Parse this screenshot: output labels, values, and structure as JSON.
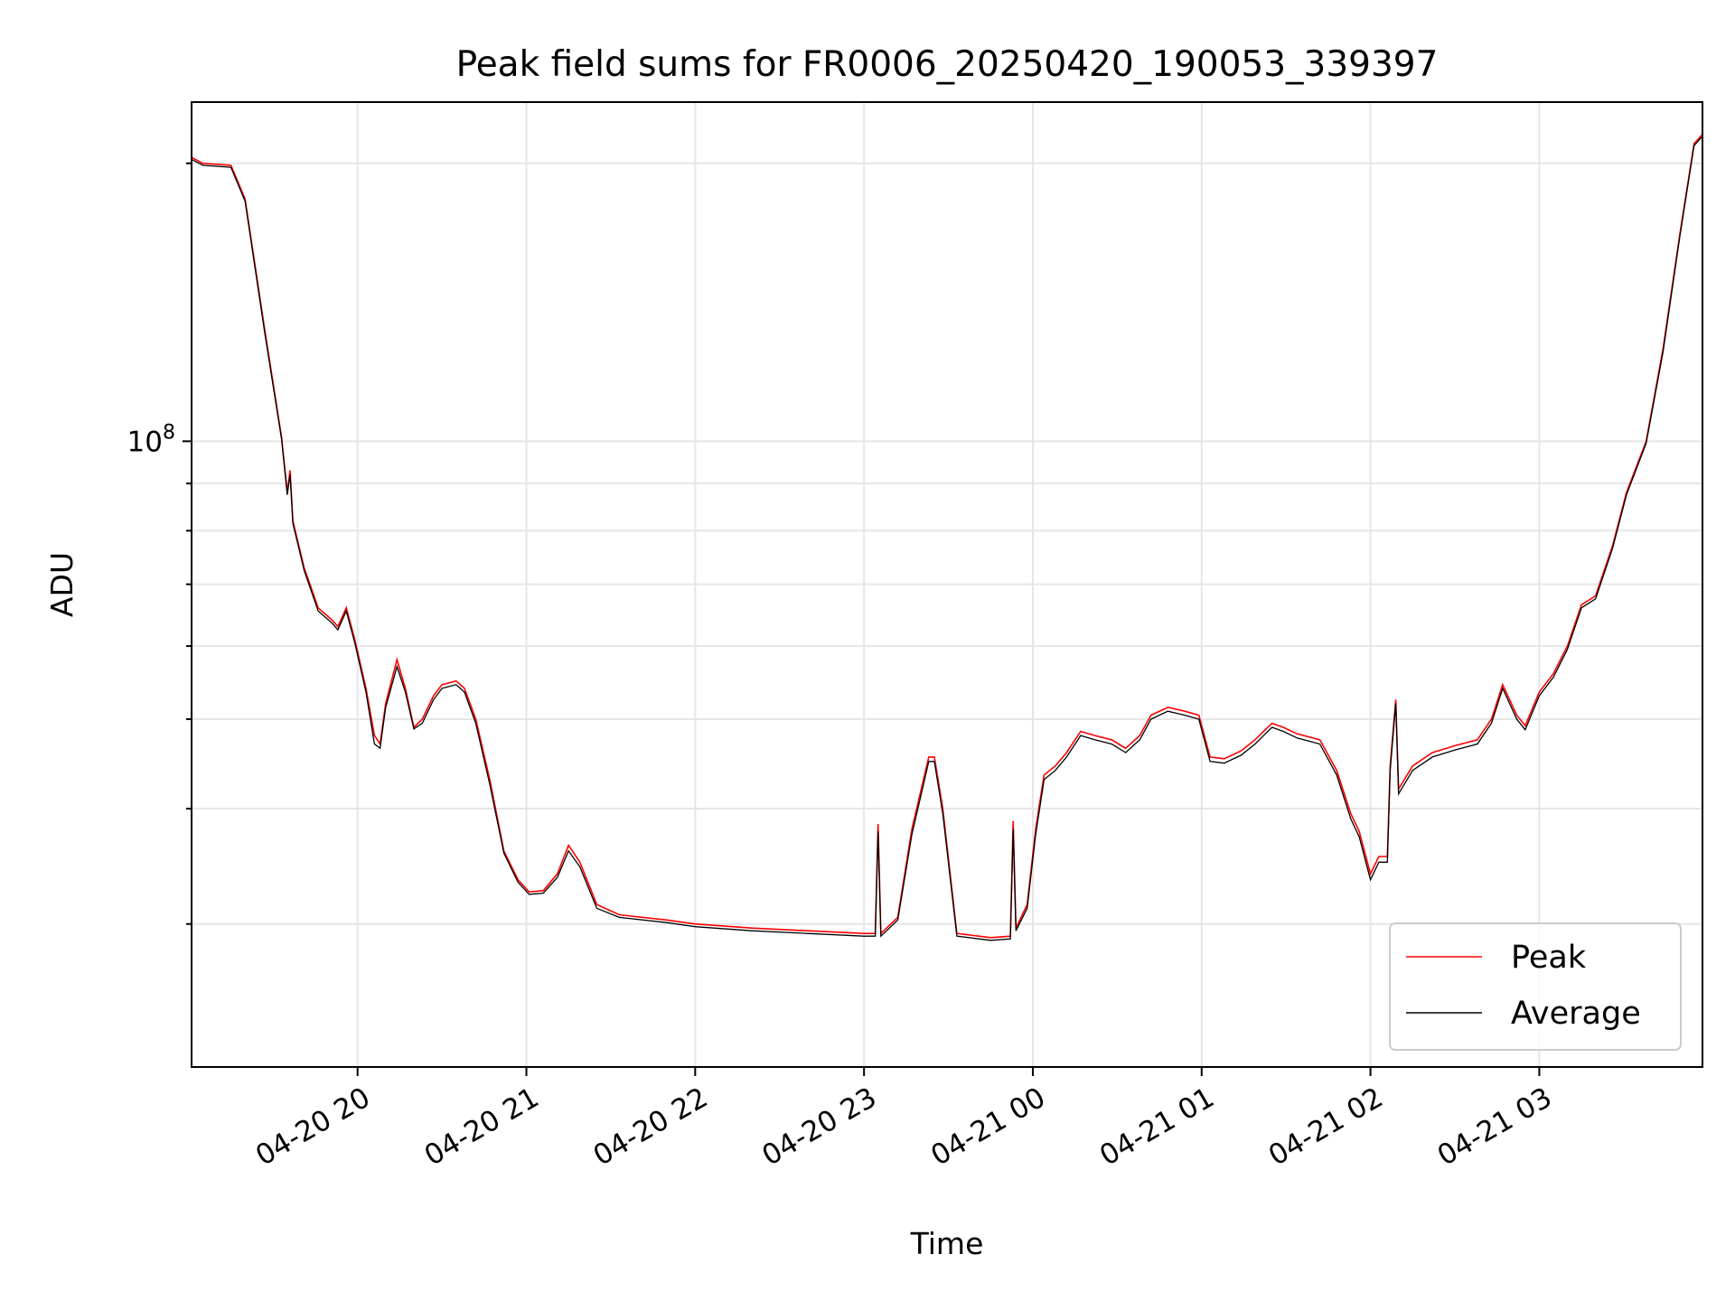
{
  "chart_data": {
    "type": "line",
    "title": "Peak field sums for FR0006_20250420_190053_339397",
    "xlabel": "Time",
    "ylabel": "ADU",
    "y_scale": "log",
    "ylim": [
      21000000,
      233000000
    ],
    "xlim": [
      "2025-04-20 19:01",
      "2025-04-21 03:58"
    ],
    "grid": true,
    "legend_position": "lower right",
    "x_ticks": [
      "04-20 20",
      "04-20 21",
      "04-20 22",
      "04-20 23",
      "04-21 00",
      "04-21 01",
      "04-21 02",
      "04-21 03"
    ],
    "y_major_tick_label": {
      "base": "10",
      "exponent": "8"
    },
    "series": [
      {
        "name": "Peak",
        "color": "#ff0000",
        "points": [
          [
            "2025-04-20 19:01",
            203000000
          ],
          [
            "2025-04-20 19:05",
            200000000
          ],
          [
            "2025-04-20 19:15",
            199000000
          ],
          [
            "2025-04-20 19:20",
            183000000
          ],
          [
            "2025-04-20 19:27",
            132000000
          ],
          [
            "2025-04-20 19:33",
            101000000
          ],
          [
            "2025-04-20 19:35",
            88000000
          ],
          [
            "2025-04-20 19:36",
            93000000
          ],
          [
            "2025-04-20 19:37",
            82000000
          ],
          [
            "2025-04-20 19:41",
            73000000
          ],
          [
            "2025-04-20 19:46",
            66000000
          ],
          [
            "2025-04-20 19:51",
            64000000
          ],
          [
            "2025-04-20 19:53",
            63000000
          ],
          [
            "2025-04-20 19:56",
            66000000
          ],
          [
            "2025-04-20 19:59",
            61000000
          ],
          [
            "2025-04-20 20:03",
            54000000
          ],
          [
            "2025-04-20 20:06",
            48000000
          ],
          [
            "2025-04-20 20:08",
            47000000
          ],
          [
            "2025-04-20 20:10",
            52000000
          ],
          [
            "2025-04-20 20:14",
            58000000
          ],
          [
            "2025-04-20 20:17",
            54000000
          ],
          [
            "2025-04-20 20:20",
            49000000
          ],
          [
            "2025-04-20 20:23",
            50000000
          ],
          [
            "2025-04-20 20:27",
            53000000
          ],
          [
            "2025-04-20 20:30",
            54500000
          ],
          [
            "2025-04-20 20:35",
            55000000
          ],
          [
            "2025-04-20 20:38",
            54000000
          ],
          [
            "2025-04-20 20:42",
            50000000
          ],
          [
            "2025-04-20 20:47",
            43000000
          ],
          [
            "2025-04-20 20:52",
            36000000
          ],
          [
            "2025-04-20 20:57",
            33500000
          ],
          [
            "2025-04-20 21:01",
            32500000
          ],
          [
            "2025-04-20 21:06",
            32600000
          ],
          [
            "2025-04-20 21:11",
            34000000
          ],
          [
            "2025-04-20 21:15",
            36500000
          ],
          [
            "2025-04-20 21:19",
            35000000
          ],
          [
            "2025-04-20 21:25",
            31500000
          ],
          [
            "2025-04-20 21:33",
            30700000
          ],
          [
            "2025-04-20 21:50",
            30300000
          ],
          [
            "2025-04-20 22:00",
            30000000
          ],
          [
            "2025-04-20 22:20",
            29700000
          ],
          [
            "2025-04-20 22:40",
            29500000
          ],
          [
            "2025-04-20 23:00",
            29300000
          ],
          [
            "2025-04-20 23:04",
            29300000
          ],
          [
            "2025-04-20 23:05",
            38500000
          ],
          [
            "2025-04-20 23:06",
            29300000
          ],
          [
            "2025-04-20 23:12",
            30500000
          ],
          [
            "2025-04-20 23:17",
            38000000
          ],
          [
            "2025-04-20 23:23",
            45500000
          ],
          [
            "2025-04-20 23:25",
            45500000
          ],
          [
            "2025-04-20 23:28",
            40000000
          ],
          [
            "2025-04-20 23:33",
            29300000
          ],
          [
            "2025-04-20 23:45",
            29000000
          ],
          [
            "2025-04-20 23:52",
            29100000
          ],
          [
            "2025-04-20 23:53",
            38800000
          ],
          [
            "2025-04-20 23:54",
            29700000
          ],
          [
            "2025-04-20 23:58",
            31500000
          ],
          [
            "2025-04-21 00:01",
            38000000
          ],
          [
            "2025-04-21 00:04",
            43500000
          ],
          [
            "2025-04-21 00:08",
            44500000
          ],
          [
            "2025-04-21 00:12",
            46000000
          ],
          [
            "2025-04-21 00:17",
            48500000
          ],
          [
            "2025-04-21 00:22",
            48000000
          ],
          [
            "2025-04-21 00:28",
            47500000
          ],
          [
            "2025-04-21 00:33",
            46500000
          ],
          [
            "2025-04-21 00:38",
            48000000
          ],
          [
            "2025-04-21 00:42",
            50500000
          ],
          [
            "2025-04-21 00:48",
            51500000
          ],
          [
            "2025-04-21 00:54",
            51000000
          ],
          [
            "2025-04-21 00:59",
            50500000
          ],
          [
            "2025-04-21 01:03",
            45500000
          ],
          [
            "2025-04-21 01:08",
            45300000
          ],
          [
            "2025-04-21 01:14",
            46200000
          ],
          [
            "2025-04-21 01:19",
            47500000
          ],
          [
            "2025-04-21 01:25",
            49500000
          ],
          [
            "2025-04-21 01:29",
            49000000
          ],
          [
            "2025-04-21 01:34",
            48200000
          ],
          [
            "2025-04-21 01:42",
            47500000
          ],
          [
            "2025-04-21 01:48",
            44000000
          ],
          [
            "2025-04-21 01:53",
            39500000
          ],
          [
            "2025-04-21 01:56",
            37800000
          ],
          [
            "2025-04-21 02:00",
            34000000
          ],
          [
            "2025-04-21 02:03",
            35500000
          ],
          [
            "2025-04-21 02:06",
            35500000
          ],
          [
            "2025-04-21 02:07",
            44500000
          ],
          [
            "2025-04-21 02:09",
            52500000
          ],
          [
            "2025-04-21 02:10",
            42000000
          ],
          [
            "2025-04-21 02:15",
            44500000
          ],
          [
            "2025-04-21 02:22",
            46000000
          ],
          [
            "2025-04-21 02:30",
            46800000
          ],
          [
            "2025-04-21 02:38",
            47500000
          ],
          [
            "2025-04-21 02:43",
            50000000
          ],
          [
            "2025-04-21 02:47",
            54500000
          ],
          [
            "2025-04-21 02:52",
            50500000
          ],
          [
            "2025-04-21 02:55",
            49200000
          ],
          [
            "2025-04-21 03:00",
            53500000
          ],
          [
            "2025-04-21 03:05",
            56000000
          ],
          [
            "2025-04-21 03:10",
            60000000
          ],
          [
            "2025-04-21 03:15",
            66500000
          ],
          [
            "2025-04-21 03:20",
            68000000
          ],
          [
            "2025-04-21 03:26",
            77000000
          ],
          [
            "2025-04-21 03:31",
            88000000
          ],
          [
            "2025-04-21 03:38",
            100000000
          ],
          [
            "2025-04-21 03:44",
            126000000
          ],
          [
            "2025-04-21 03:50",
            168000000
          ],
          [
            "2025-04-21 03:55",
            210000000
          ],
          [
            "2025-04-21 03:58",
            215000000
          ]
        ]
      },
      {
        "name": "Average",
        "color": "#000000",
        "points": [
          [
            "2025-04-20 19:01",
            202000000
          ],
          [
            "2025-04-20 19:05",
            199000000
          ],
          [
            "2025-04-20 19:15",
            198000000
          ],
          [
            "2025-04-20 19:20",
            182000000
          ],
          [
            "2025-04-20 19:27",
            131000000
          ],
          [
            "2025-04-20 19:33",
            100500000
          ],
          [
            "2025-04-20 19:35",
            87500000
          ],
          [
            "2025-04-20 19:36",
            92000000
          ],
          [
            "2025-04-20 19:37",
            81500000
          ],
          [
            "2025-04-20 19:41",
            72500000
          ],
          [
            "2025-04-20 19:46",
            65500000
          ],
          [
            "2025-04-20 19:51",
            63500000
          ],
          [
            "2025-04-20 19:53",
            62500000
          ],
          [
            "2025-04-20 19:56",
            65500000
          ],
          [
            "2025-04-20 19:59",
            60500000
          ],
          [
            "2025-04-20 20:03",
            53500000
          ],
          [
            "2025-04-20 20:06",
            47000000
          ],
          [
            "2025-04-20 20:08",
            46500000
          ],
          [
            "2025-04-20 20:10",
            51500000
          ],
          [
            "2025-04-20 20:14",
            57000000
          ],
          [
            "2025-04-20 20:17",
            53500000
          ],
          [
            "2025-04-20 20:20",
            48800000
          ],
          [
            "2025-04-20 20:23",
            49500000
          ],
          [
            "2025-04-20 20:27",
            52500000
          ],
          [
            "2025-04-20 20:30",
            54000000
          ],
          [
            "2025-04-20 20:35",
            54500000
          ],
          [
            "2025-04-20 20:38",
            53500000
          ],
          [
            "2025-04-20 20:42",
            49500000
          ],
          [
            "2025-04-20 20:47",
            42500000
          ],
          [
            "2025-04-20 20:52",
            35800000
          ],
          [
            "2025-04-20 20:57",
            33300000
          ],
          [
            "2025-04-20 21:01",
            32300000
          ],
          [
            "2025-04-20 21:06",
            32400000
          ],
          [
            "2025-04-20 21:11",
            33700000
          ],
          [
            "2025-04-20 21:15",
            36000000
          ],
          [
            "2025-04-20 21:19",
            34600000
          ],
          [
            "2025-04-20 21:25",
            31200000
          ],
          [
            "2025-04-20 21:33",
            30500000
          ],
          [
            "2025-04-20 21:50",
            30100000
          ],
          [
            "2025-04-20 22:00",
            29800000
          ],
          [
            "2025-04-20 22:20",
            29500000
          ],
          [
            "2025-04-20 22:40",
            29300000
          ],
          [
            "2025-04-20 23:00",
            29100000
          ],
          [
            "2025-04-20 23:04",
            29100000
          ],
          [
            "2025-04-20 23:05",
            37800000
          ],
          [
            "2025-04-20 23:06",
            29100000
          ],
          [
            "2025-04-20 23:12",
            30300000
          ],
          [
            "2025-04-20 23:17",
            37500000
          ],
          [
            "2025-04-20 23:23",
            45000000
          ],
          [
            "2025-04-20 23:25",
            45000000
          ],
          [
            "2025-04-20 23:28",
            39500000
          ],
          [
            "2025-04-20 23:33",
            29100000
          ],
          [
            "2025-04-20 23:45",
            28800000
          ],
          [
            "2025-04-20 23:52",
            28900000
          ],
          [
            "2025-04-20 23:53",
            38000000
          ],
          [
            "2025-04-20 23:54",
            29500000
          ],
          [
            "2025-04-20 23:58",
            31200000
          ],
          [
            "2025-04-21 00:01",
            37500000
          ],
          [
            "2025-04-21 00:04",
            43000000
          ],
          [
            "2025-04-21 00:08",
            44000000
          ],
          [
            "2025-04-21 00:12",
            45500000
          ],
          [
            "2025-04-21 00:17",
            48000000
          ],
          [
            "2025-04-21 00:22",
            47500000
          ],
          [
            "2025-04-21 00:28",
            47000000
          ],
          [
            "2025-04-21 00:33",
            46000000
          ],
          [
            "2025-04-21 00:38",
            47500000
          ],
          [
            "2025-04-21 00:42",
            50000000
          ],
          [
            "2025-04-21 00:48",
            51000000
          ],
          [
            "2025-04-21 00:54",
            50500000
          ],
          [
            "2025-04-21 00:59",
            50000000
          ],
          [
            "2025-04-21 01:03",
            45000000
          ],
          [
            "2025-04-21 01:08",
            44800000
          ],
          [
            "2025-04-21 01:14",
            45700000
          ],
          [
            "2025-04-21 01:19",
            47000000
          ],
          [
            "2025-04-21 01:25",
            49000000
          ],
          [
            "2025-04-21 01:29",
            48500000
          ],
          [
            "2025-04-21 01:34",
            47700000
          ],
          [
            "2025-04-21 01:42",
            47000000
          ],
          [
            "2025-04-21 01:48",
            43500000
          ],
          [
            "2025-04-21 01:53",
            39000000
          ],
          [
            "2025-04-21 01:56",
            37300000
          ],
          [
            "2025-04-21 02:00",
            33500000
          ],
          [
            "2025-04-21 02:03",
            35000000
          ],
          [
            "2025-04-21 02:06",
            35000000
          ],
          [
            "2025-04-21 02:07",
            44000000
          ],
          [
            "2025-04-21 02:09",
            52000000
          ],
          [
            "2025-04-21 02:10",
            41500000
          ],
          [
            "2025-04-21 02:15",
            44000000
          ],
          [
            "2025-04-21 02:22",
            45500000
          ],
          [
            "2025-04-21 02:30",
            46300000
          ],
          [
            "2025-04-21 02:38",
            47000000
          ],
          [
            "2025-04-21 02:43",
            49500000
          ],
          [
            "2025-04-21 02:47",
            54000000
          ],
          [
            "2025-04-21 02:52",
            50000000
          ],
          [
            "2025-04-21 02:55",
            48700000
          ],
          [
            "2025-04-21 03:00",
            53000000
          ],
          [
            "2025-04-21 03:05",
            55500000
          ],
          [
            "2025-04-21 03:10",
            59500000
          ],
          [
            "2025-04-21 03:15",
            66000000
          ],
          [
            "2025-04-21 03:20",
            67500000
          ],
          [
            "2025-04-21 03:26",
            76500000
          ],
          [
            "2025-04-21 03:31",
            87500000
          ],
          [
            "2025-04-21 03:38",
            99500000
          ],
          [
            "2025-04-21 03:44",
            125000000
          ],
          [
            "2025-04-21 03:50",
            167000000
          ],
          [
            "2025-04-21 03:55",
            209000000
          ],
          [
            "2025-04-21 03:58",
            214000000
          ]
        ]
      }
    ]
  }
}
